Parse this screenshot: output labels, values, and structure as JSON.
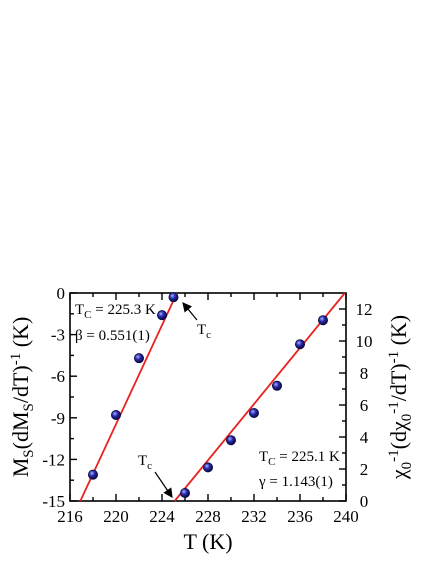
{
  "chart_data": {
    "type": "scatter",
    "xlabel": "T (K)",
    "ylabel_left": "M_S(dM_S/dT)^-1 (K)",
    "ylabel_right": "χ_0^-1(dχ_0^-1/dT)^-1 (K)",
    "xlim": [
      216,
      240
    ],
    "ylim_left": [
      -15,
      0
    ],
    "ylim_right": [
      0,
      13
    ],
    "x_ticks": [
      "216",
      "220",
      "224",
      "228",
      "232",
      "236",
      "240"
    ],
    "left_ticks": [
      "0",
      "-3",
      "-6",
      "-9",
      "-12",
      "-15"
    ],
    "right_ticks": [
      "0",
      "2",
      "4",
      "6",
      "8",
      "10",
      "12"
    ],
    "series": [
      {
        "axis": "left",
        "points": [
          [
            218,
            -13.1
          ],
          [
            220,
            -8.8
          ],
          [
            222,
            -4.7
          ],
          [
            224,
            -1.6
          ],
          [
            225,
            -0.3
          ]
        ],
        "fit": [
          [
            216.9,
            -15
          ],
          [
            225.3,
            0
          ]
        ]
      },
      {
        "axis": "right",
        "points": [
          [
            226,
            0.5
          ],
          [
            228,
            2.1
          ],
          [
            230,
            3.8
          ],
          [
            232,
            5.5
          ],
          [
            234,
            7.2
          ],
          [
            236,
            9.8
          ],
          [
            238,
            11.3
          ]
        ],
        "fit": [
          [
            225.1,
            0
          ],
          [
            239.9,
            13
          ]
        ]
      }
    ],
    "annotations": {
      "tc_left": {
        "main": "T",
        "sub": "C",
        "rest": " = 225.3 K"
      },
      "beta": "β = 0.551(1)",
      "tc_right": {
        "main": "T",
        "sub": "C",
        "rest": " = 225.1 K"
      },
      "gamma": "γ = 1.143(1)",
      "tc_arrow_top": {
        "main": "T",
        "sub": "c"
      },
      "tc_arrow_bottom": {
        "main": "T",
        "sub": "c"
      }
    },
    "colors": {
      "fit_line": "#e8231f",
      "marker": "#1a1a8c"
    }
  }
}
